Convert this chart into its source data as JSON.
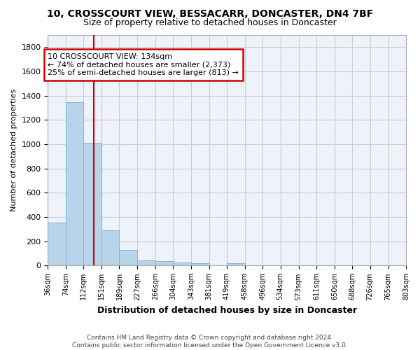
{
  "title": "10, CROSSCOURT VIEW, BESSACARR, DONCASTER, DN4 7BF",
  "subtitle": "Size of property relative to detached houses in Doncaster",
  "xlabel": "Distribution of detached houses by size in Doncaster",
  "ylabel": "Number of detached properties",
  "bar_color": "#b8d4ea",
  "bar_edge_color": "#7aaed4",
  "grid_color": "#cccccc",
  "bg_color": "#eef2fb",
  "vline_x": 134,
  "vline_color": "#cc0000",
  "annotation_text": "10 CROSSCOURT VIEW: 134sqm\n← 74% of detached houses are smaller (2,373)\n25% of semi-detached houses are larger (813) →",
  "annotation_box_color": "#cc0000",
  "bin_edges": [
    36,
    74,
    112,
    151,
    189,
    227,
    266,
    304,
    343,
    381,
    419,
    458,
    496,
    534,
    573,
    611,
    650,
    688,
    726,
    765,
    803
  ],
  "bin_heights": [
    355,
    1348,
    1010,
    290,
    127,
    42,
    35,
    25,
    20,
    0,
    20,
    0,
    0,
    0,
    0,
    0,
    0,
    0,
    0,
    0
  ],
  "tick_labels": [
    "36sqm",
    "74sqm",
    "112sqm",
    "151sqm",
    "189sqm",
    "227sqm",
    "266sqm",
    "304sqm",
    "343sqm",
    "381sqm",
    "419sqm",
    "458sqm",
    "496sqm",
    "534sqm",
    "573sqm",
    "611sqm",
    "650sqm",
    "688sqm",
    "726sqm",
    "765sqm",
    "803sqm"
  ],
  "footnote": "Contains HM Land Registry data © Crown copyright and database right 2024.\nContains public sector information licensed under the Open Government Licence v3.0.",
  "ylim": [
    0,
    1900
  ],
  "yticks": [
    0,
    200,
    400,
    600,
    800,
    1000,
    1200,
    1400,
    1600,
    1800
  ]
}
